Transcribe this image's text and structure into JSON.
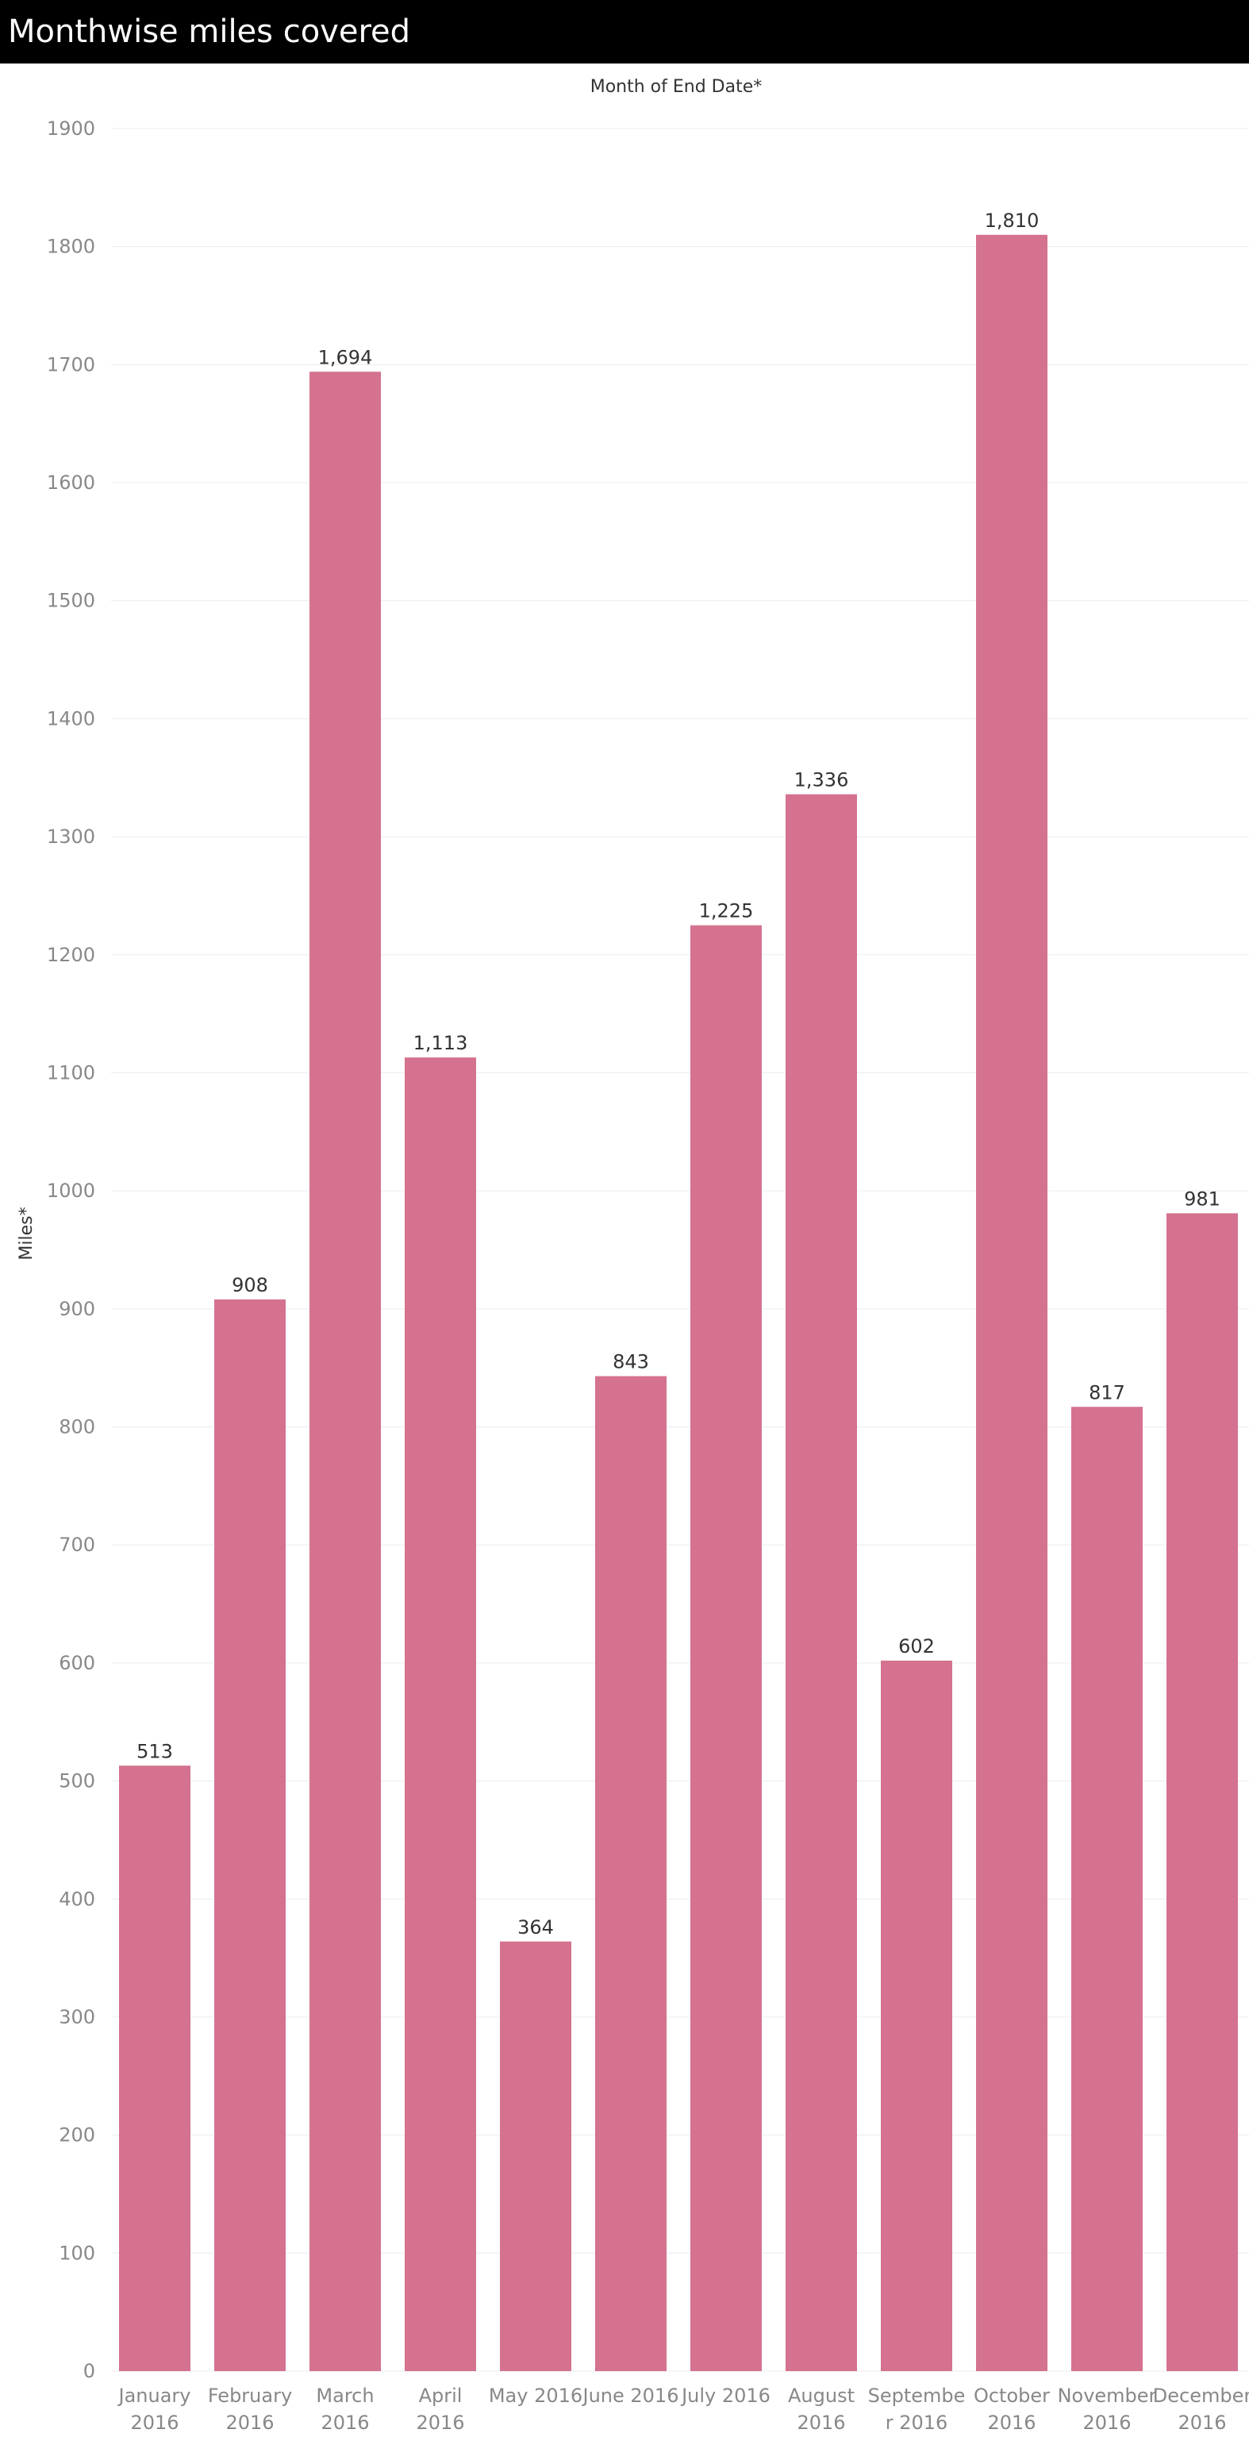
{
  "title": "Monthwise miles covered",
  "chart_data": {
    "type": "bar",
    "title": "Monthwise miles covered",
    "xlabel": "Month of End Date*",
    "ylabel": "Miles*",
    "ylim": [
      0,
      1900
    ],
    "yticks": [
      0,
      100,
      200,
      300,
      400,
      500,
      600,
      700,
      800,
      900,
      1000,
      1100,
      1200,
      1300,
      1400,
      1500,
      1600,
      1700,
      1800,
      1900
    ],
    "categories": [
      [
        "January",
        "2016"
      ],
      [
        "February",
        "2016"
      ],
      [
        "March",
        "2016"
      ],
      [
        "April",
        "2016"
      ],
      [
        "May 2016"
      ],
      [
        "June 2016"
      ],
      [
        "July 2016"
      ],
      [
        "August",
        "2016"
      ],
      [
        "Septembe",
        "r 2016"
      ],
      [
        "October",
        "2016"
      ],
      [
        "November",
        "2016"
      ],
      [
        "December",
        "2016"
      ]
    ],
    "values": [
      513,
      908,
      1694,
      1113,
      364,
      843,
      1225,
      1336,
      602,
      1810,
      817,
      981
    ],
    "value_labels": [
      "513",
      "908",
      "1,694",
      "1,113",
      "364",
      "843",
      "1,225",
      "1,336",
      "602",
      "1,810",
      "817",
      "981"
    ],
    "bar_color": "#d4728f",
    "grid": true,
    "xlabel_position": "top"
  }
}
